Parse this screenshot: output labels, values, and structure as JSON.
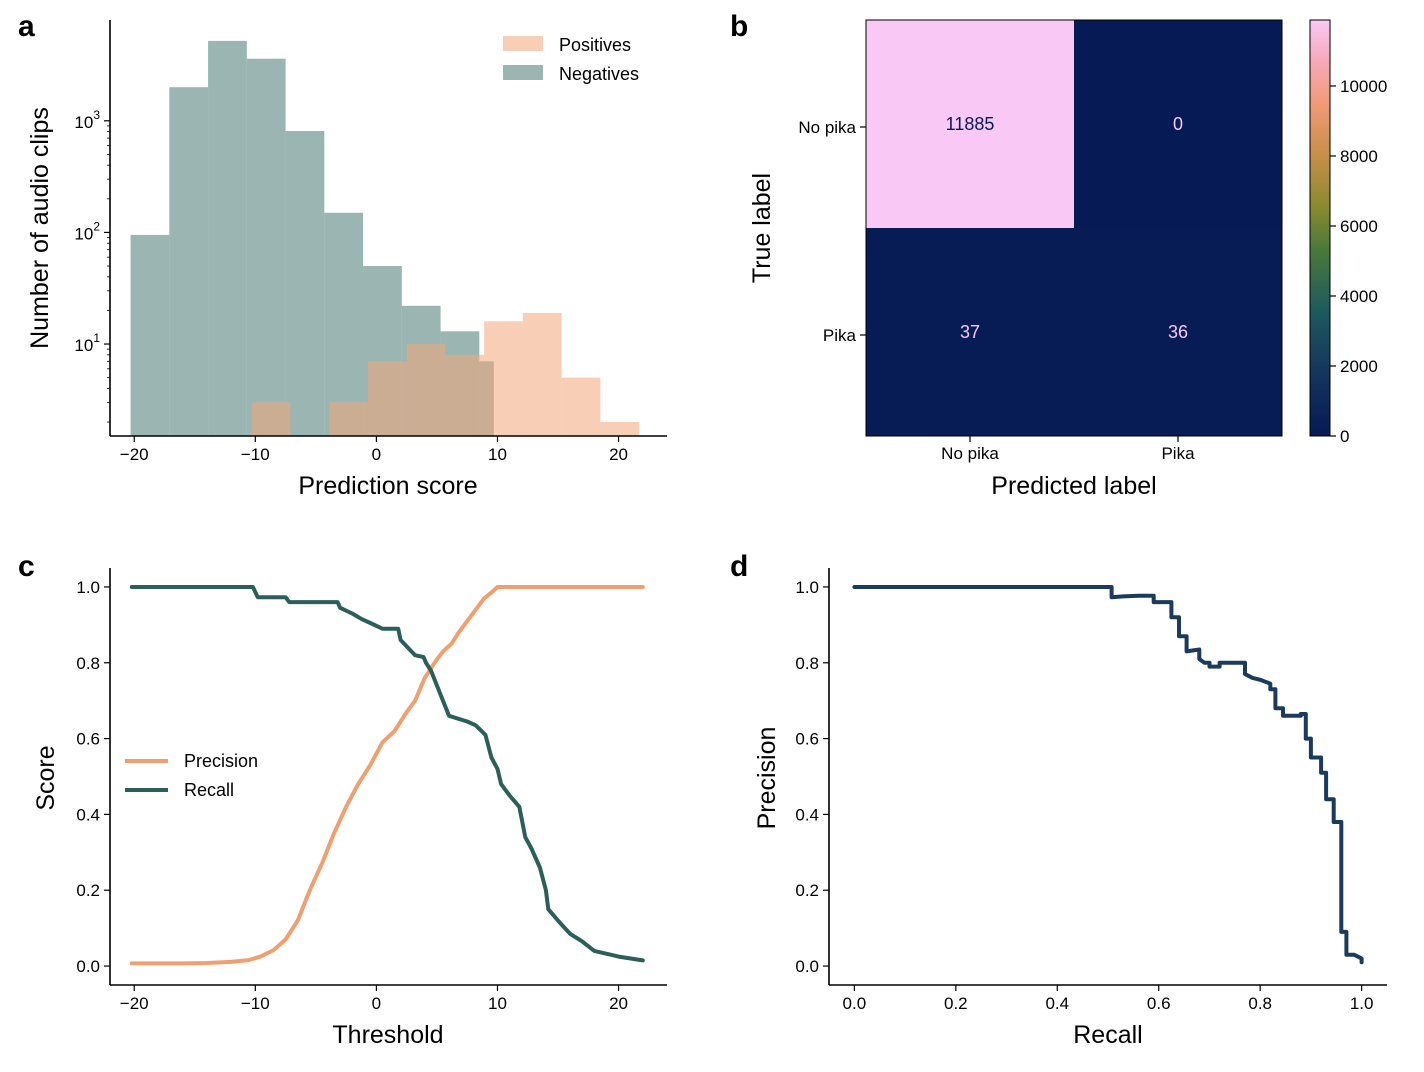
{
  "panels": {
    "a": {
      "letter": "a",
      "xlabel": "Prediction score",
      "ylabel": "Number of audio clips"
    },
    "b": {
      "letter": "b",
      "xlabel": "Predicted label",
      "ylabel": "True label"
    },
    "c": {
      "letter": "c",
      "xlabel": "Threshold",
      "ylabel": "Score"
    },
    "d": {
      "letter": "d",
      "xlabel": "Recall",
      "ylabel": "Precision"
    }
  },
  "colors": {
    "positives": "#f2a57a",
    "negatives": "#52807c",
    "precision": "#f0a070",
    "recall": "#2c5f5a",
    "pr_curve": "#1b3a5c",
    "cm_low": "#061a55",
    "cm_high": "#f9c8f5"
  },
  "chart_data": [
    {
      "panel": "a",
      "type": "bar",
      "subtype": "histogram",
      "yscale": "log",
      "xlim": [
        -22,
        24
      ],
      "ylim": [
        1.5,
        8000
      ],
      "xticks": [
        -20,
        -10,
        0,
        10,
        20
      ],
      "xtick_labels": [
        "−20",
        "−10",
        "0",
        "10",
        "20"
      ],
      "yticks": [
        10,
        100,
        1000
      ],
      "ytick_labels": [
        {
          "base": "10",
          "exp": "1"
        },
        {
          "base": "10",
          "exp": "2"
        },
        {
          "base": "10",
          "exp": "3"
        }
      ],
      "legend": {
        "placement": "top-right",
        "entries": [
          "Positives",
          "Negatives"
        ]
      },
      "series": [
        {
          "name": "Negatives",
          "bins": [
            {
              "x0": -20.3,
              "x1": -17.1,
              "count": 95
            },
            {
              "x0": -17.1,
              "x1": -13.9,
              "count": 2000
            },
            {
              "x0": -13.9,
              "x1": -10.7,
              "count": 5200
            },
            {
              "x0": -10.7,
              "x1": -7.5,
              "count": 3600
            },
            {
              "x0": -7.5,
              "x1": -4.3,
              "count": 810
            },
            {
              "x0": -4.3,
              "x1": -1.1,
              "count": 150
            },
            {
              "x0": -1.1,
              "x1": 2.1,
              "count": 50
            },
            {
              "x0": 2.1,
              "x1": 5.3,
              "count": 22
            },
            {
              "x0": 5.3,
              "x1": 8.5,
              "count": 13
            },
            {
              "x0": 8.5,
              "x1": 9.7,
              "count": 7
            }
          ]
        },
        {
          "name": "Positives",
          "bins": [
            {
              "x0": -10.3,
              "x1": -7.1,
              "count": 3
            },
            {
              "x0": -3.9,
              "x1": -0.7,
              "count": 3
            },
            {
              "x0": -0.7,
              "x1": 2.5,
              "count": 7
            },
            {
              "x0": 2.5,
              "x1": 5.7,
              "count": 10
            },
            {
              "x0": 5.7,
              "x1": 8.9,
              "count": 8
            },
            {
              "x0": 8.9,
              "x1": 12.1,
              "count": 16
            },
            {
              "x0": 12.1,
              "x1": 15.3,
              "count": 19
            },
            {
              "x0": 15.3,
              "x1": 18.5,
              "count": 5
            },
            {
              "x0": 18.5,
              "x1": 21.7,
              "count": 2
            }
          ]
        }
      ]
    },
    {
      "panel": "b",
      "type": "heatmap",
      "row_labels": [
        "No pika",
        "Pika"
      ],
      "col_labels": [
        "No pika",
        "Pika"
      ],
      "values": [
        [
          11885,
          0
        ],
        [
          37,
          36
        ]
      ],
      "colorbar": {
        "min": 0,
        "max": 11885,
        "ticks": [
          0,
          2000,
          4000,
          6000,
          8000,
          10000
        ]
      }
    },
    {
      "panel": "c",
      "type": "line",
      "xlim": [
        -22,
        24
      ],
      "ylim": [
        -0.05,
        1.05
      ],
      "xticks": [
        -20,
        -10,
        0,
        10,
        20
      ],
      "xtick_labels": [
        "−20",
        "−10",
        "0",
        "10",
        "20"
      ],
      "yticks": [
        0,
        0.2,
        0.4,
        0.6,
        0.8,
        1.0
      ],
      "ytick_labels": [
        "0.0",
        "0.2",
        "0.4",
        "0.6",
        "0.8",
        "1.0"
      ],
      "legend": {
        "placement": "center-left",
        "entries": [
          "Precision",
          "Recall"
        ]
      },
      "series": [
        {
          "name": "Precision",
          "x": [
            -20.2,
            -16,
            -14,
            -12,
            -10.5,
            -9.5,
            -8.5,
            -7.5,
            -6.5,
            -5.5,
            -4.5,
            -3.5,
            -2.5,
            -1.5,
            -0.5,
            0.5,
            1.5,
            2.5,
            3.2,
            4,
            4.8,
            5.5,
            6.2,
            6.8,
            7.5,
            8.2,
            8.9,
            9.5,
            10,
            12,
            16,
            22
          ],
          "y": [
            0.007,
            0.007,
            0.008,
            0.011,
            0.016,
            0.026,
            0.042,
            0.07,
            0.12,
            0.2,
            0.27,
            0.35,
            0.42,
            0.48,
            0.53,
            0.59,
            0.62,
            0.67,
            0.7,
            0.76,
            0.8,
            0.83,
            0.85,
            0.88,
            0.91,
            0.94,
            0.97,
            0.985,
            1.0,
            1.0,
            1.0,
            1.0
          ]
        },
        {
          "name": "Recall",
          "x": [
            -20.2,
            -10.2,
            -9.8,
            -7.5,
            -7.2,
            -3.2,
            -3.0,
            -2.0,
            -1.2,
            -0.5,
            0.5,
            1.8,
            2.0,
            3.2,
            3.9,
            4.1,
            4.5,
            5.0,
            5.5,
            6.0,
            7.5,
            8.2,
            9.0,
            9.5,
            10.0,
            10.3,
            11.0,
            11.8,
            12.3,
            12.8,
            13.5,
            14.0,
            14.2,
            15.0,
            16.0,
            17.0,
            18.0,
            20.0,
            22.0
          ],
          "y": [
            1.0,
            1.0,
            0.973,
            0.973,
            0.96,
            0.96,
            0.945,
            0.93,
            0.915,
            0.905,
            0.89,
            0.89,
            0.86,
            0.82,
            0.815,
            0.8,
            0.78,
            0.74,
            0.7,
            0.66,
            0.645,
            0.635,
            0.61,
            0.55,
            0.52,
            0.48,
            0.45,
            0.42,
            0.34,
            0.31,
            0.26,
            0.2,
            0.15,
            0.12,
            0.085,
            0.065,
            0.04,
            0.025,
            0.015
          ]
        }
      ]
    },
    {
      "panel": "d",
      "type": "line",
      "xlim": [
        -0.05,
        1.05
      ],
      "ylim": [
        -0.05,
        1.05
      ],
      "xticks": [
        0,
        0.2,
        0.4,
        0.6,
        0.8,
        1.0
      ],
      "xtick_labels": [
        "0.0",
        "0.2",
        "0.4",
        "0.6",
        "0.8",
        "1.0"
      ],
      "yticks": [
        0,
        0.2,
        0.4,
        0.6,
        0.8,
        1.0
      ],
      "ytick_labels": [
        "0.0",
        "0.2",
        "0.4",
        "0.6",
        "0.8",
        "1.0"
      ],
      "series": [
        {
          "name": "",
          "x": [
            0.0,
            0.507,
            0.507,
            0.53,
            0.56,
            0.59,
            0.59,
            0.625,
            0.625,
            0.64,
            0.64,
            0.655,
            0.655,
            0.68,
            0.68,
            0.69,
            0.7,
            0.7,
            0.72,
            0.72,
            0.77,
            0.77,
            0.785,
            0.8,
            0.81,
            0.82,
            0.82,
            0.83,
            0.83,
            0.845,
            0.845,
            0.88,
            0.88,
            0.89,
            0.89,
            0.9,
            0.9,
            0.92,
            0.92,
            0.93,
            0.93,
            0.945,
            0.945,
            0.96,
            0.96,
            0.97,
            0.97,
            0.985,
            1.0,
            1.0
          ],
          "y": [
            1.0,
            1.0,
            0.973,
            0.975,
            0.977,
            0.977,
            0.96,
            0.96,
            0.92,
            0.92,
            0.87,
            0.87,
            0.83,
            0.835,
            0.81,
            0.8,
            0.8,
            0.79,
            0.79,
            0.8,
            0.8,
            0.77,
            0.76,
            0.755,
            0.75,
            0.745,
            0.73,
            0.73,
            0.68,
            0.68,
            0.66,
            0.66,
            0.665,
            0.665,
            0.6,
            0.6,
            0.55,
            0.55,
            0.51,
            0.51,
            0.44,
            0.44,
            0.38,
            0.38,
            0.09,
            0.09,
            0.03,
            0.03,
            0.02,
            0.01
          ]
        }
      ]
    }
  ]
}
